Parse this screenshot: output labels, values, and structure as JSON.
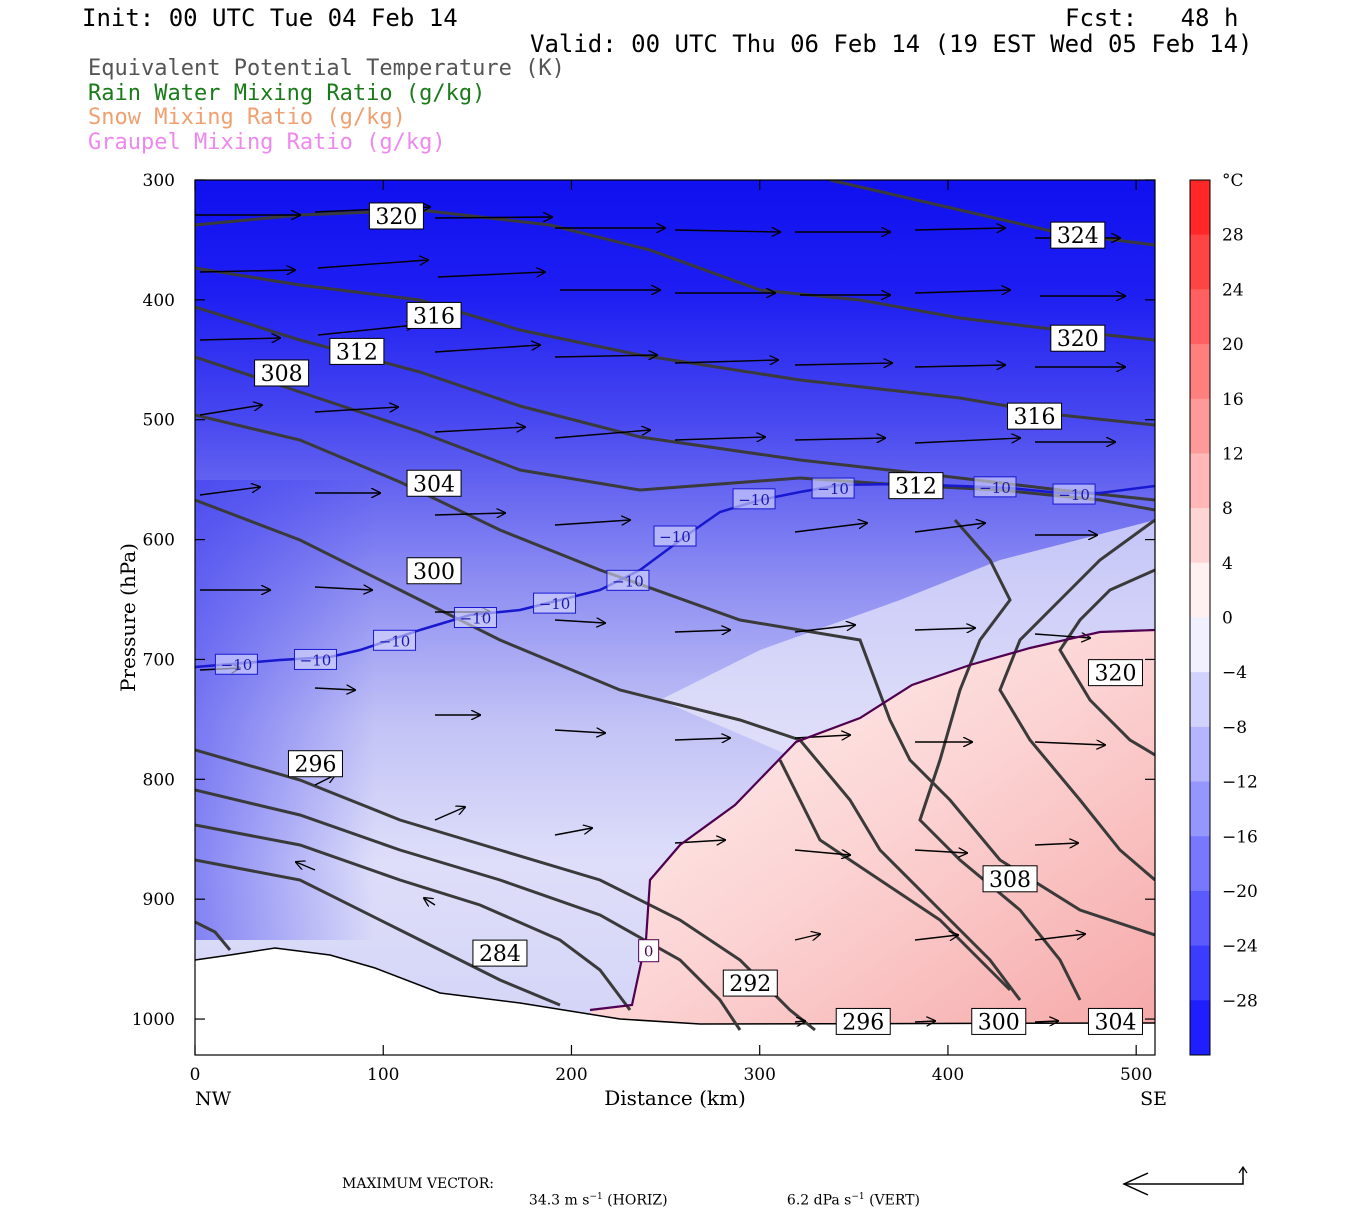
{
  "header": {
    "init": "Init: 00 UTC Tue 04 Feb 14",
    "fcst": "Fcst:   48 h",
    "valid": "Valid: 00 UTC Thu 06 Feb 14 (19 EST Wed 05 Feb 14)"
  },
  "legend": [
    {
      "text": "Equivalent Potential Temperature (K)",
      "color": "#555555"
    },
    {
      "text": "Rain Water Mixing Ratio (g/kg)",
      "color": "#1a7a1a"
    },
    {
      "text": "Snow Mixing Ratio (g/kg)",
      "color": "#f0a070"
    },
    {
      "text": "Graupel Mixing Ratio (g/kg)",
      "color": "#ee88ee"
    }
  ],
  "chart_data": {
    "type": "heatmap",
    "xlabel": "Distance (km)",
    "ylabel": "Pressure (hPa)",
    "xlim": [
      0,
      510
    ],
    "ylim": [
      1030,
      300
    ],
    "x_ticks": [
      0,
      100,
      200,
      300,
      400,
      500
    ],
    "y_ticks": [
      300,
      400,
      500,
      600,
      700,
      800,
      900,
      1000
    ],
    "x_end_labels": {
      "left": "NW",
      "right": "SE"
    },
    "colorbar": {
      "unit": "°C",
      "ticks": [
        28,
        24,
        20,
        16,
        12,
        8,
        4,
        0,
        -4,
        -8,
        -12,
        -16,
        -20,
        -24,
        -28
      ],
      "tick_labels": [
        "28",
        "24",
        "20",
        "16",
        "12",
        "8",
        "4",
        "0",
        "−4",
        "−8",
        "−12",
        "−16",
        "−20",
        "−24",
        "−28"
      ],
      "range": [
        -32,
        32
      ]
    },
    "theta_e_labels": [
      {
        "text": "320",
        "x": 107,
        "p": 330
      },
      {
        "text": "324",
        "x": 469,
        "p": 346
      },
      {
        "text": "316",
        "x": 127,
        "p": 413
      },
      {
        "text": "312",
        "x": 86,
        "p": 443
      },
      {
        "text": "308",
        "x": 46,
        "p": 461
      },
      {
        "text": "320",
        "x": 469,
        "p": 432
      },
      {
        "text": "316",
        "x": 446,
        "p": 497
      },
      {
        "text": "304",
        "x": 127,
        "p": 553
      },
      {
        "text": "312",
        "x": 383,
        "p": 555
      },
      {
        "text": "300",
        "x": 127,
        "p": 626
      },
      {
        "text": "320",
        "x": 489,
        "p": 711
      },
      {
        "text": "296",
        "x": 64,
        "p": 787
      },
      {
        "text": "308",
        "x": 433,
        "p": 883
      },
      {
        "text": "284",
        "x": 162,
        "p": 945
      },
      {
        "text": "292",
        "x": 295,
        "p": 970
      },
      {
        "text": "296",
        "x": 355,
        "p": 1002
      },
      {
        "text": "300",
        "x": 427,
        "p": 1002
      },
      {
        "text": "304",
        "x": 489,
        "p": 1002
      }
    ],
    "minus10_labels": [
      {
        "text": "−10",
        "x": 22,
        "p": 704
      },
      {
        "text": "−10",
        "x": 64,
        "p": 700
      },
      {
        "text": "−10",
        "x": 106,
        "p": 684
      },
      {
        "text": "−10",
        "x": 149,
        "p": 665
      },
      {
        "text": "−10",
        "x": 191,
        "p": 653
      },
      {
        "text": "−10",
        "x": 230,
        "p": 634
      },
      {
        "text": "−10",
        "x": 255,
        "p": 597
      },
      {
        "text": "−10",
        "x": 297,
        "p": 566
      },
      {
        "text": "−10",
        "x": 339,
        "p": 557
      },
      {
        "text": "−10",
        "x": 425,
        "p": 556
      },
      {
        "text": "−10",
        "x": 467,
        "p": 562
      }
    ],
    "zero_label": {
      "text": "0",
      "x": 241,
      "p": 943
    }
  },
  "footer": {
    "max_vector_label": "MAXIMUM VECTOR:",
    "horiz_value": "34.3 m s",
    "horiz_sup": "−1",
    "horiz_suffix": " (HORIZ)",
    "vert_value": "6.2 dPa s",
    "vert_sup": "−1",
    "vert_suffix": " (VERT)"
  }
}
